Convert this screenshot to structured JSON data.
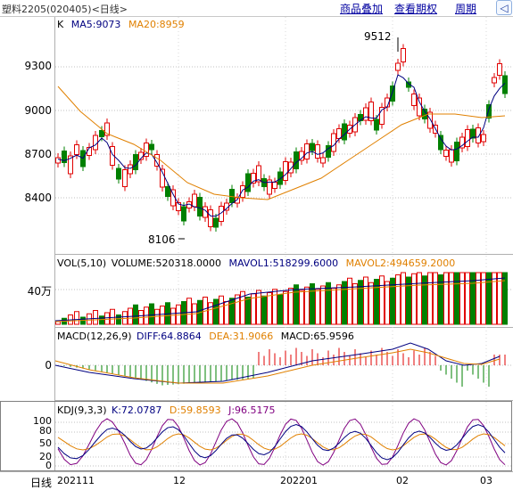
{
  "header": {
    "title": "塑料2205(020405)<日线>",
    "menu": [
      "商品叠加",
      "查看期权",
      "周期"
    ],
    "nav_symbol": "◁"
  },
  "kline": {
    "legend_k": "K",
    "ma5": "MA5:9073",
    "ma20": "MA20:8959",
    "yticks": [
      "9300",
      "9000",
      "8700",
      "8400"
    ],
    "high_label": "9512",
    "low_label": "8106"
  },
  "volume": {
    "legend": "VOL(5,10)",
    "volume": "VOLUME:520318.0000",
    "mavol1": "MAVOL1:518299.6000",
    "mavol2": "MAVOL2:494659.2000",
    "ytick": "40万"
  },
  "macd": {
    "legend": "MACD(12,26,9)",
    "diff": "DIFF:64.8864",
    "dea": "DEA:31.9066",
    "macd": "MACD:65.9596",
    "ytick": "0"
  },
  "kdj": {
    "legend": "KDJ(9,3,3)",
    "k": "K:72.0787",
    "d": "D:59.8593",
    "j": "J:96.5175",
    "yticks": [
      "100",
      "80",
      "50",
      "20",
      "0"
    ]
  },
  "xaxis": {
    "label": "日线",
    "ticks": [
      "202111",
      "12",
      "202201",
      "02",
      "03"
    ]
  },
  "colors": {
    "up": "#e00000",
    "down": "#008000",
    "ma5": "#000080",
    "ma20": "#e08000",
    "dea": "#e08000",
    "diff": "#000080",
    "kline_j": "#800080"
  }
}
